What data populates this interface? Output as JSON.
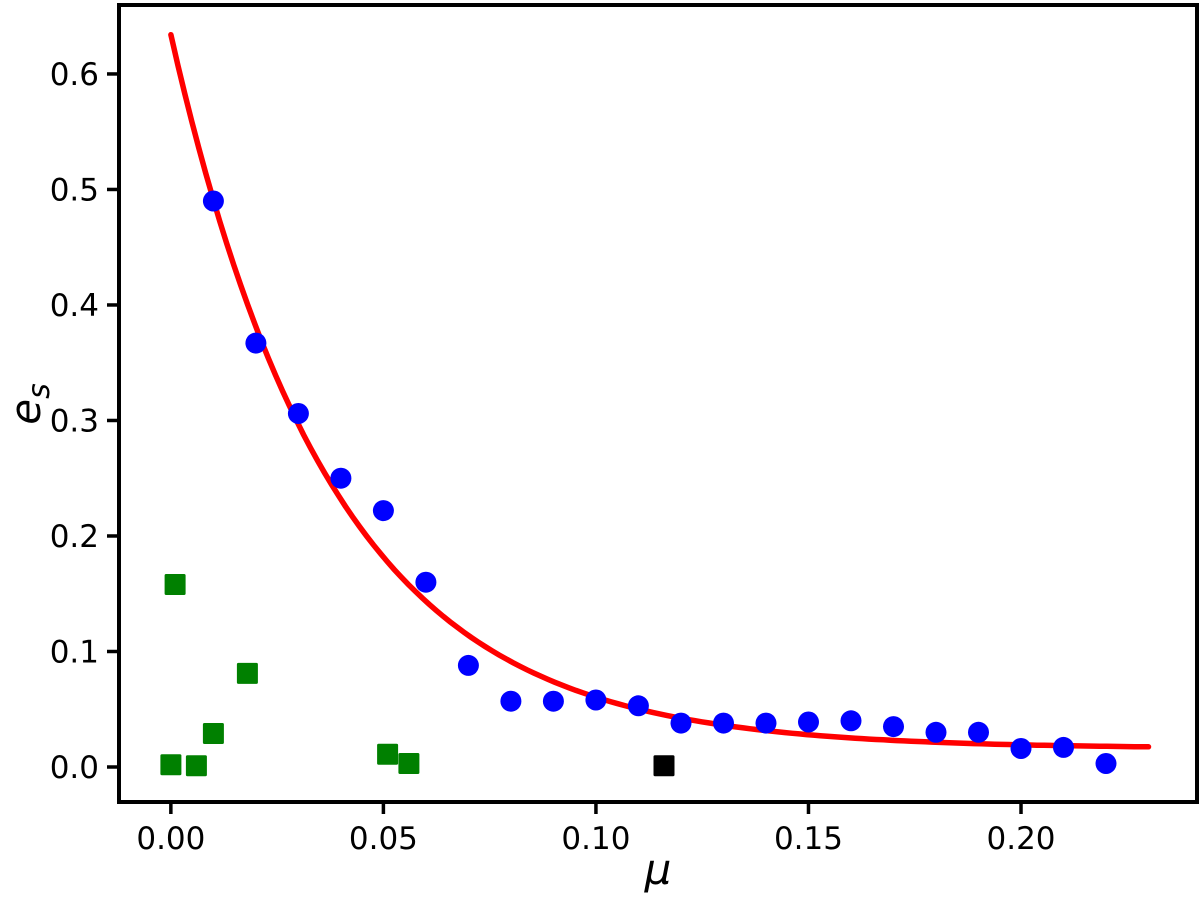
{
  "figure": {
    "background": "#ffffff",
    "frame_color": "#000000",
    "tick_color": "#000000",
    "text_color": "#000000"
  },
  "chart_data": {
    "type": "scatter",
    "title": "",
    "xlabel": "μ",
    "ylabel": "e_s",
    "ylabel_base": "e",
    "ylabel_subscript": "s",
    "xlim": [
      -0.0122,
      0.2414
    ],
    "ylim": [
      -0.0303,
      0.6597
    ],
    "grid": false,
    "legend": false,
    "x_ticks": {
      "values": [
        0.0,
        0.05,
        0.1,
        0.15,
        0.2
      ],
      "labels": [
        "0.00",
        "0.05",
        "0.10",
        "0.15",
        "0.20"
      ]
    },
    "y_ticks": {
      "values": [
        0.0,
        0.1,
        0.2,
        0.3,
        0.4,
        0.5,
        0.6
      ],
      "labels": [
        "0.0",
        "0.1",
        "0.2",
        "0.3",
        "0.4",
        "0.5",
        "0.6"
      ]
    },
    "series": [
      {
        "name": "blue-circles",
        "marker": "circle",
        "color": "#0000ff",
        "points": [
          [
            0.01,
            0.49
          ],
          [
            0.02,
            0.367
          ],
          [
            0.03,
            0.306
          ],
          [
            0.04,
            0.25
          ],
          [
            0.05,
            0.222
          ],
          [
            0.06,
            0.16
          ],
          [
            0.07,
            0.088
          ],
          [
            0.08,
            0.057
          ],
          [
            0.09,
            0.057
          ],
          [
            0.1,
            0.058
          ],
          [
            0.11,
            0.053
          ],
          [
            0.12,
            0.038
          ],
          [
            0.13,
            0.038
          ],
          [
            0.14,
            0.038
          ],
          [
            0.15,
            0.039
          ],
          [
            0.16,
            0.04
          ],
          [
            0.17,
            0.035
          ],
          [
            0.18,
            0.03
          ],
          [
            0.19,
            0.03
          ],
          [
            0.2,
            0.016
          ],
          [
            0.21,
            0.017
          ],
          [
            0.22,
            0.003
          ]
        ]
      },
      {
        "name": "green-squares",
        "marker": "square",
        "color": "#008000",
        "points": [
          [
            0.0,
            0.002
          ],
          [
            0.001,
            0.158
          ],
          [
            0.006,
            0.001
          ],
          [
            0.01,
            0.029
          ],
          [
            0.018,
            0.081
          ],
          [
            0.051,
            0.011
          ],
          [
            0.056,
            0.003
          ]
        ]
      },
      {
        "name": "black-square",
        "marker": "square",
        "color": "#000000",
        "points": [
          [
            0.116,
            0.001
          ]
        ]
      }
    ],
    "fit_curve": {
      "name": "red-exponential-fit",
      "color": "#ff0000",
      "model": "y = c + a*exp(-x/t)",
      "a": 0.618,
      "t": 0.038,
      "c": 0.016,
      "x_range": [
        0.0,
        0.23
      ]
    }
  }
}
